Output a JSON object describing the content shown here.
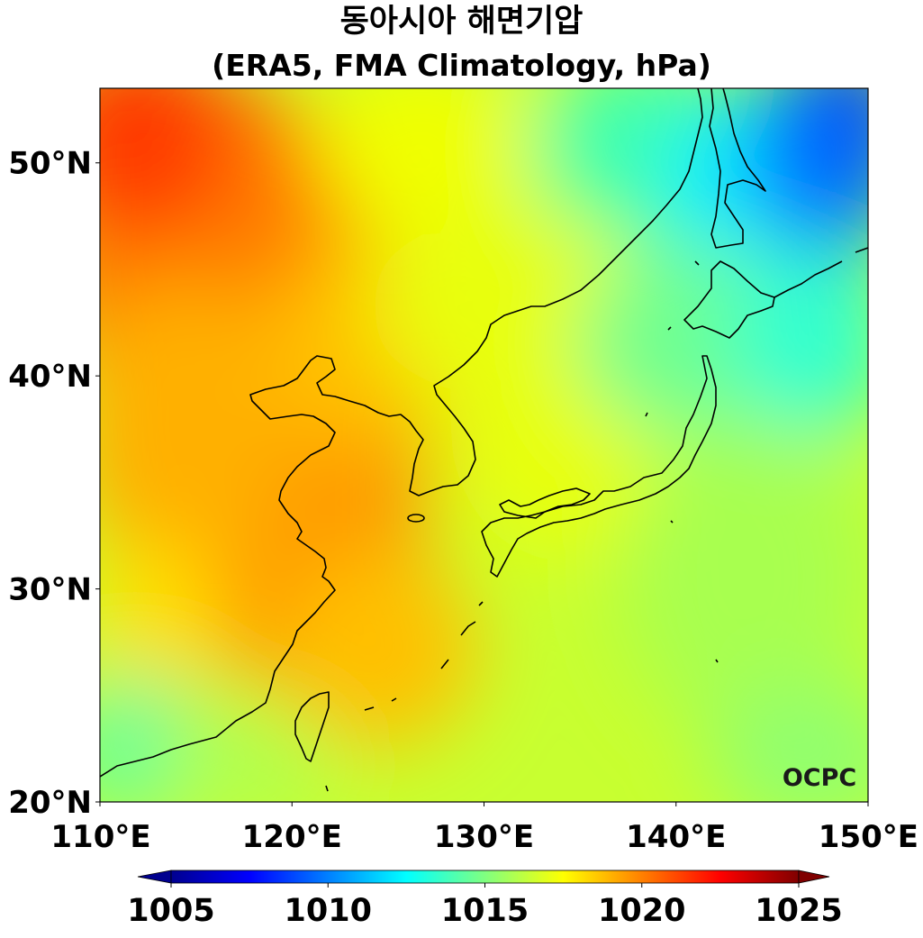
{
  "title": {
    "line1": "동아시아 해면기압",
    "line2": "(ERA5, FMA Climatology, hPa)"
  },
  "map": {
    "lon_range": [
      110,
      150
    ],
    "lat_range": [
      20,
      53.5
    ],
    "lon_ticks": [
      {
        "value": 110,
        "label": "110°E"
      },
      {
        "value": 120,
        "label": "120°E"
      },
      {
        "value": 130,
        "label": "130°E"
      },
      {
        "value": 140,
        "label": "140°E"
      },
      {
        "value": 150,
        "label": "150°E"
      }
    ],
    "lat_ticks": [
      {
        "value": 20,
        "label": "20°N"
      },
      {
        "value": 30,
        "label": "30°N"
      },
      {
        "value": 40,
        "label": "40°N"
      },
      {
        "value": 50,
        "label": "50°N"
      }
    ],
    "variable": "sea level pressure",
    "colormap": "jet",
    "coastline_color": "#000000"
  },
  "colorbar": {
    "range": [
      1005,
      1025
    ],
    "extend": "both",
    "ticks": [
      {
        "value": 1005,
        "label": "1005"
      },
      {
        "value": 1010,
        "label": "1010"
      },
      {
        "value": 1015,
        "label": "1015"
      },
      {
        "value": 1020,
        "label": "1020"
      },
      {
        "value": 1025,
        "label": "1025"
      }
    ],
    "colors": [
      "#00008f",
      "#0000ff",
      "#0080ff",
      "#00ffff",
      "#80ff80",
      "#ffff00",
      "#ff8000",
      "#ff0000",
      "#800000"
    ]
  },
  "logo": {
    "text": "OCPC"
  }
}
